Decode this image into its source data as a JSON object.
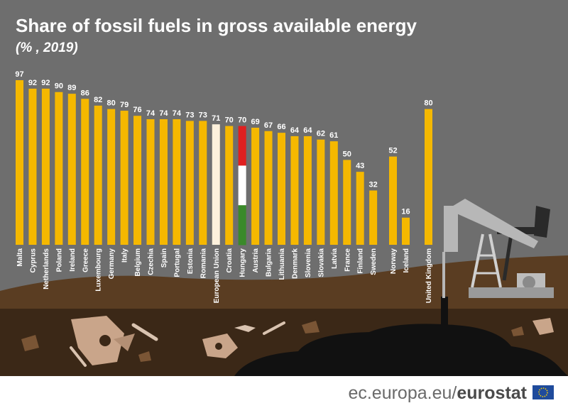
{
  "header": {
    "title": "Share of fossil fuels in gross available energy",
    "subtitle": "(% , 2019)"
  },
  "footer": {
    "url_text": "ec.europa.eu/",
    "brand_text": "eurostat"
  },
  "colors": {
    "background": "#6e6e6e",
    "bar": "#f5b800",
    "eu_bar": "#fdf1dc",
    "hungary_red": "#e02020",
    "hungary_white": "#ffffff",
    "hungary_green": "#3a8a2a",
    "ground": "#5a3d22",
    "underground": "#3b2817",
    "oil": "#111111"
  },
  "chart_data": {
    "type": "bar",
    "title": "Share of fossil fuels in gross available energy",
    "subtitle": "(% , 2019)",
    "ylim": [
      0,
      100
    ],
    "grid": false,
    "categories": [
      "Malta",
      "Cyprus",
      "Netherlands",
      "Poland",
      "Ireland",
      "Greece",
      "Luxembourg",
      "Germany",
      "Italy",
      "Belgium",
      "Czechia",
      "Spain",
      "Portugal",
      "Estonia",
      "Romania",
      "European Union",
      "Croatia",
      "Hungary",
      "Austria",
      "Bulgaria",
      "Lithuania",
      "Denmark",
      "Slovenia",
      "Slovakia",
      "Latvia",
      "France",
      "Finland",
      "Sweden",
      "Norway",
      "Iceland",
      "United Kingdom"
    ],
    "values": [
      97,
      92,
      92,
      90,
      89,
      86,
      82,
      80,
      79,
      76,
      74,
      74,
      74,
      73,
      73,
      71,
      70,
      70,
      69,
      67,
      66,
      64,
      64,
      62,
      61,
      50,
      43,
      32,
      52,
      16,
      80
    ],
    "value_labels": [
      "97",
      "92",
      "92",
      "90",
      "89",
      "86",
      "82",
      "80",
      "79",
      "76",
      "74",
      "74",
      "74",
      "73",
      "73",
      "71",
      "70",
      "70",
      "69",
      "67",
      "66",
      "64",
      "64",
      "62",
      "61",
      "50",
      "43",
      "32",
      "52",
      "16",
      "80"
    ],
    "highlight": {
      "European Union": "eu",
      "Hungary": "flag"
    }
  }
}
